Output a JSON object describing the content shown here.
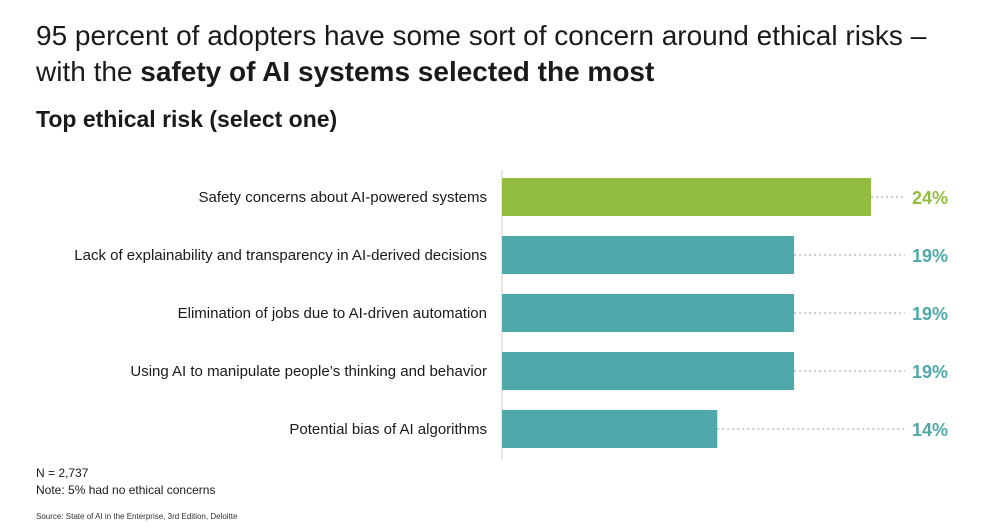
{
  "header": {
    "headline_line1": "95 percent of adopters have some sort of concern around ethical risks –",
    "headline_line2_plain": "with the ",
    "headline_line2_bold": "safety of AI systems selected the most",
    "subtitle": "Top ethical risk (select one)"
  },
  "footer": {
    "n": "N = 2,737",
    "note": "Note: 5% had no ethical concerns",
    "source": "Source: State of AI in the Enterprise, 3rd Edition, Deloitte"
  },
  "colors": {
    "highlight": "#92bd40",
    "default": "#4fa8aa",
    "leader": "#9a9a9a",
    "axis": "#d0d0d0"
  },
  "chart_data": {
    "type": "bar",
    "orientation": "horizontal",
    "categories": [
      "Safety concerns about AI-powered systems",
      "Lack of explainability and transparency in AI-derived decisions",
      "Elimination of jobs due to AI-driven automation",
      "Using AI to manipulate people’s thinking and behavior",
      "Potential bias of AI algorithms"
    ],
    "values": [
      24,
      19,
      19,
      19,
      14
    ],
    "value_labels": [
      "24%",
      "19%",
      "19%",
      "19%",
      "14%"
    ],
    "highlight_index": 0,
    "xlim": [
      0,
      24
    ],
    "grid": false,
    "legend": "none"
  }
}
